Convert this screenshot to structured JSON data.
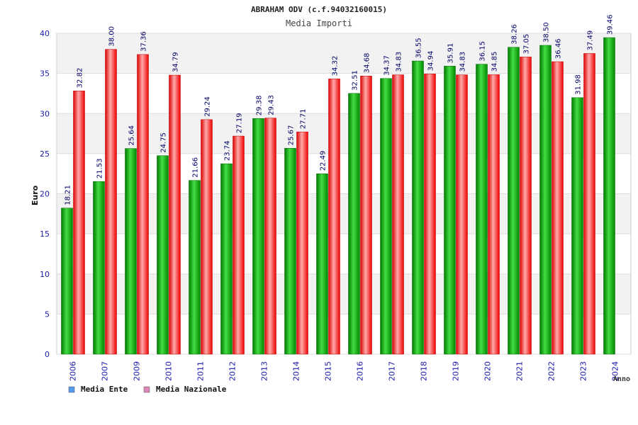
{
  "chart_data": {
    "type": "bar",
    "title": "ABRAHAM ODV (c.f.94032160015)",
    "subtitle": "Media Importi",
    "xlabel": "Anno",
    "ylabel": "Euro",
    "ylim": [
      0,
      40
    ],
    "yticks": [
      "0",
      "5",
      "10",
      "15",
      "20",
      "25",
      "30",
      "35",
      "40"
    ],
    "grid": true,
    "legend_position": "bottom-left",
    "categories": [
      "2006",
      "2007",
      "2009",
      "2010",
      "2011",
      "2012",
      "2013",
      "2014",
      "2015",
      "2016",
      "2017",
      "2018",
      "2019",
      "2020",
      "2021",
      "2022",
      "2023",
      "2024"
    ],
    "series": [
      {
        "name": "Media Ente",
        "color": "#00aa00",
        "legend_color": "#5599ee",
        "values": [
          18.21,
          21.53,
          25.64,
          24.75,
          21.66,
          23.74,
          29.38,
          25.67,
          22.49,
          32.51,
          34.37,
          36.55,
          35.91,
          36.15,
          38.26,
          38.5,
          31.98,
          39.46
        ],
        "labels": [
          "18.21",
          "21.53",
          "25.64",
          "24.75",
          "21.66",
          "23.74",
          "29.38",
          "25.67",
          "22.49",
          "32.51",
          "34.37",
          "36.55",
          "35.91",
          "36.15",
          "38.26",
          "38.50",
          "31.98",
          "39.46"
        ]
      },
      {
        "name": "Media Nazionale",
        "color": "#ee1111",
        "legend_color": "#dd88bb",
        "values": [
          32.82,
          38.0,
          37.36,
          34.79,
          29.24,
          27.19,
          29.43,
          27.71,
          34.32,
          34.68,
          34.83,
          34.94,
          34.83,
          34.85,
          37.05,
          36.46,
          37.49,
          null
        ],
        "labels": [
          "32.82",
          "38.00",
          "37.36",
          "34.79",
          "29.24",
          "27.19",
          "29.43",
          "27.71",
          "34.32",
          "34.68",
          "34.83",
          "34.94",
          "34.83",
          "34.85",
          "37.05",
          "36.46",
          "37.49",
          ""
        ]
      }
    ]
  }
}
